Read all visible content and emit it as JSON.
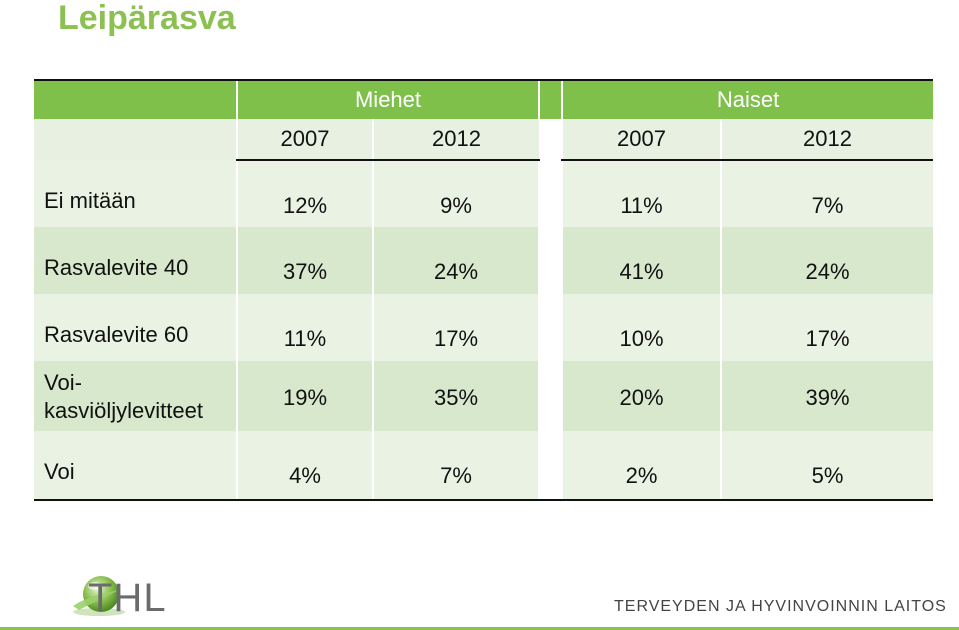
{
  "title": "Leipärasva",
  "header": {
    "groups": [
      "Miehet",
      "Naiset"
    ],
    "years": [
      "2007",
      "2012",
      "2007",
      "2012"
    ]
  },
  "rows": [
    {
      "label": "Ei mitään",
      "values": [
        "12%",
        "9%",
        "11%",
        "7%"
      ]
    },
    {
      "label": "Rasvalevite 40",
      "values": [
        "37%",
        "24%",
        "41%",
        "24%"
      ]
    },
    {
      "label": "Rasvalevite 60",
      "values": [
        "11%",
        "17%",
        "10%",
        "17%"
      ]
    },
    {
      "label_line1": "Voi-",
      "label_line2": "kasviöljylevitteet",
      "values": [
        "19%",
        "35%",
        "20%",
        "39%"
      ]
    },
    {
      "label": "Voi",
      "values": [
        "4%",
        "7%",
        "2%",
        "5%"
      ]
    }
  ],
  "footer": {
    "logo_text": "THL",
    "organization": "TERVEYDEN JA HYVINVOINNIN LAITOS"
  },
  "colors": {
    "accent": "#8cc152",
    "header_bg": "#7fc04b",
    "row_light": "#e9f2e3",
    "row_dark": "#d7e8cc"
  }
}
